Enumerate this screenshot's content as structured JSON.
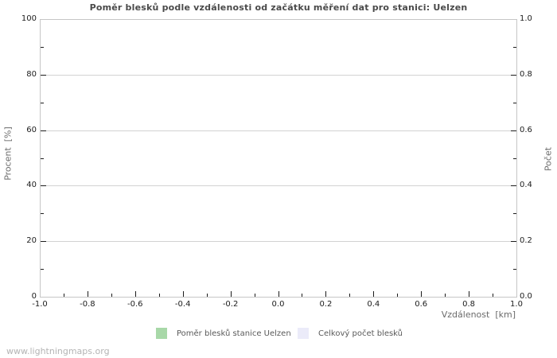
{
  "page": {
    "watermark": "www.lightningmaps.org"
  },
  "colors": {
    "title": "#4a4a4a",
    "border": "#c6c6c6",
    "grid": "#d2d2d2",
    "tick": "#1c1c1c",
    "tick_label": "#1c1c1c",
    "axis_label": "#6b6b6b",
    "legend_text": "#5a5a5a",
    "watermark": "#b4b4b4",
    "series_ratio": "#a8d8a8",
    "series_total": "#ebebf9"
  },
  "chart_data": {
    "type": "bar",
    "title": "Poměr blesků podle vzdálenosti od začátku měření dat pro stanici: Uelzen",
    "xlabel": "Vzdálenost  [km]",
    "ylabel_left": "Procent  [%]",
    "ylabel_right": "Počet",
    "xlim": [
      -1.0,
      1.0
    ],
    "ylim_left": [
      0,
      100
    ],
    "ylim_right": [
      0.0,
      1.0
    ],
    "grid": "horizontal-major-only",
    "legend_position": "bottom-center",
    "x_ticks": [
      {
        "v": -1.0,
        "label": "-1.0"
      },
      {
        "v": -0.8,
        "label": "-0.8"
      },
      {
        "v": -0.6,
        "label": "-0.6"
      },
      {
        "v": -0.4,
        "label": "-0.4"
      },
      {
        "v": -0.2,
        "label": "-0.2"
      },
      {
        "v": 0.0,
        "label": "0.0"
      },
      {
        "v": 0.2,
        "label": "0.2"
      },
      {
        "v": 0.4,
        "label": "0.4"
      },
      {
        "v": 0.6,
        "label": "0.6"
      },
      {
        "v": 0.8,
        "label": "0.8"
      },
      {
        "v": 1.0,
        "label": "1.0"
      }
    ],
    "x_minor": [
      -0.9,
      -0.7,
      -0.5,
      -0.3,
      -0.1,
      0.1,
      0.3,
      0.5,
      0.7,
      0.9
    ],
    "y_left_ticks": [
      {
        "v": 0,
        "label": "0"
      },
      {
        "v": 20,
        "label": "20"
      },
      {
        "v": 40,
        "label": "40"
      },
      {
        "v": 60,
        "label": "60"
      },
      {
        "v": 80,
        "label": "80"
      },
      {
        "v": 100,
        "label": "100"
      }
    ],
    "y_minor": [
      10,
      30,
      50,
      70,
      90
    ],
    "y_gridlines": [
      20,
      40,
      60,
      80
    ],
    "y_right_ticks": [
      {
        "v": 0.0,
        "label": "0.0"
      },
      {
        "v": 0.2,
        "label": "0.2"
      },
      {
        "v": 0.4,
        "label": "0.4"
      },
      {
        "v": 0.6,
        "label": "0.6"
      },
      {
        "v": 0.8,
        "label": "0.8"
      },
      {
        "v": 1.0,
        "label": "1.0"
      }
    ],
    "series": [
      {
        "name": "Poměr blesků stanice Uelzen",
        "color": "#a8d8a8",
        "values": []
      },
      {
        "name": "Celkový počet blesků",
        "color": "#ebebf9",
        "values": []
      }
    ]
  }
}
